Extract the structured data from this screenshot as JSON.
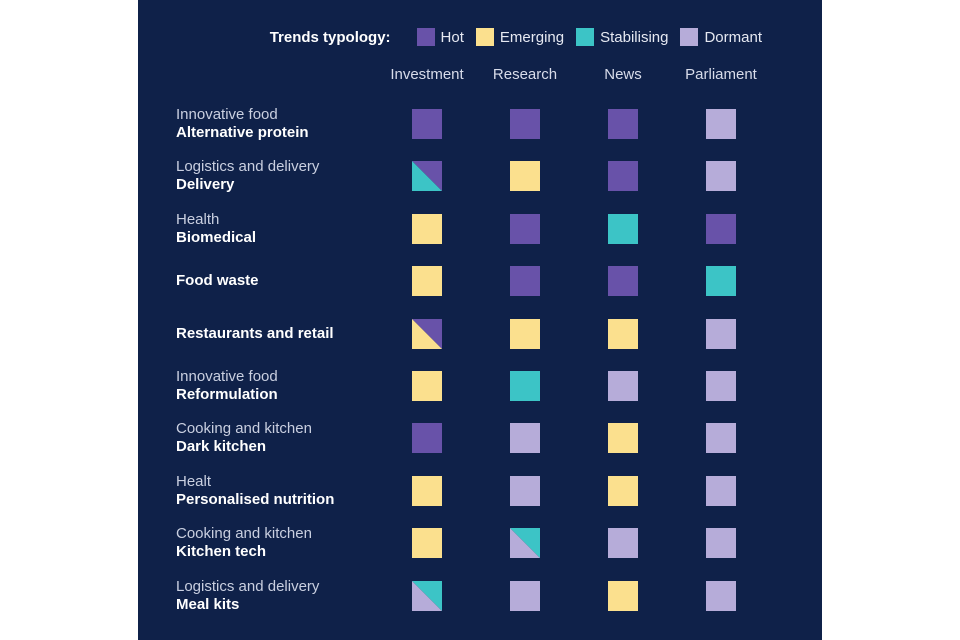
{
  "chart_data": {
    "type": "table",
    "legend": {
      "title": "Trends typology:",
      "items": [
        {
          "key": "hot",
          "label": "Hot",
          "color": "#6852a9"
        },
        {
          "key": "emerging",
          "label": "Emerging",
          "color": "#fbe08e"
        },
        {
          "key": "stabilising",
          "label": "Stabilising",
          "color": "#3cc4c6"
        },
        {
          "key": "dormant",
          "label": "Dormant",
          "color": "#b6acd9"
        }
      ]
    },
    "columns": [
      "Investment",
      "Research",
      "News",
      "Parliament"
    ],
    "rows": [
      {
        "category": "Innovative food",
        "name": "Alternative protein",
        "cells": [
          [
            "hot"
          ],
          [
            "hot"
          ],
          [
            "hot"
          ],
          [
            "dormant"
          ]
        ]
      },
      {
        "category": "Logistics and delivery",
        "name": "Delivery",
        "cells": [
          [
            "hot",
            "stabilising"
          ],
          [
            "emerging"
          ],
          [
            "hot"
          ],
          [
            "dormant"
          ]
        ]
      },
      {
        "category": "Health",
        "name": "Biomedical",
        "cells": [
          [
            "emerging"
          ],
          [
            "hot"
          ],
          [
            "stabilising"
          ],
          [
            "hot"
          ]
        ]
      },
      {
        "category": "",
        "name": "Food waste",
        "cells": [
          [
            "emerging"
          ],
          [
            "hot"
          ],
          [
            "hot"
          ],
          [
            "stabilising"
          ]
        ]
      },
      {
        "category": "",
        "name": "Restaurants and retail",
        "cells": [
          [
            "hot",
            "emerging"
          ],
          [
            "emerging"
          ],
          [
            "emerging"
          ],
          [
            "dormant"
          ]
        ]
      },
      {
        "category": "Innovative food",
        "name": "Reformulation",
        "cells": [
          [
            "emerging"
          ],
          [
            "stabilising"
          ],
          [
            "dormant"
          ],
          [
            "dormant"
          ]
        ]
      },
      {
        "category": "Cooking and kitchen",
        "name": "Dark kitchen",
        "cells": [
          [
            "hot"
          ],
          [
            "dormant"
          ],
          [
            "emerging"
          ],
          [
            "dormant"
          ]
        ]
      },
      {
        "category": "Healt",
        "name": "Personalised nutrition",
        "cells": [
          [
            "emerging"
          ],
          [
            "dormant"
          ],
          [
            "emerging"
          ],
          [
            "dormant"
          ]
        ]
      },
      {
        "category": "Cooking and kitchen",
        "name": "Kitchen tech",
        "cells": [
          [
            "emerging"
          ],
          [
            "stabilising",
            "dormant"
          ],
          [
            "dormant"
          ],
          [
            "dormant"
          ]
        ]
      },
      {
        "category": "Logistics and delivery",
        "name": "Meal kits",
        "cells": [
          [
            "stabilising",
            "dormant"
          ],
          [
            "dormant"
          ],
          [
            "emerging"
          ],
          [
            "dormant"
          ]
        ]
      }
    ]
  }
}
